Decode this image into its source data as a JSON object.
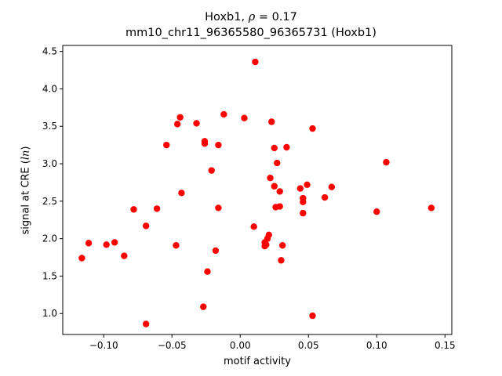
{
  "chart_data": {
    "type": "scatter",
    "title": {
      "gene": "Hoxb1, ",
      "rho_symbol": "ρ",
      "rho_value": " = 0.17",
      "subtitle": "mm10_chr11_96365580_96365731 (Hoxb1)"
    },
    "xlabel": "motif activity",
    "ylabel_prefix": "signal at CRE (",
    "ylabel_italic": "ln",
    "ylabel_suffix": ")",
    "xlim": [
      -0.13,
      0.155
    ],
    "ylim": [
      0.72,
      4.58
    ],
    "xticks": [
      -0.1,
      -0.05,
      0.0,
      0.05,
      0.1,
      0.15
    ],
    "xtick_labels": [
      "−0.10",
      "−0.05",
      "0.00",
      "0.05",
      "0.10",
      "0.15"
    ],
    "yticks": [
      1.0,
      1.5,
      2.0,
      2.5,
      3.0,
      3.5,
      4.0,
      4.5
    ],
    "ytick_labels": [
      "1.0",
      "1.5",
      "2.0",
      "2.5",
      "3.0",
      "3.5",
      "4.0",
      "4.5"
    ],
    "marker_color": "#ff0000",
    "grid": false,
    "points": [
      {
        "x": -0.116,
        "y": 1.74
      },
      {
        "x": -0.111,
        "y": 1.94
      },
      {
        "x": -0.098,
        "y": 1.92
      },
      {
        "x": -0.092,
        "y": 1.95
      },
      {
        "x": -0.085,
        "y": 1.77
      },
      {
        "x": -0.078,
        "y": 2.39
      },
      {
        "x": -0.069,
        "y": 2.17
      },
      {
        "x": -0.069,
        "y": 0.86
      },
      {
        "x": -0.061,
        "y": 2.4
      },
      {
        "x": -0.054,
        "y": 3.25
      },
      {
        "x": -0.047,
        "y": 1.91
      },
      {
        "x": -0.046,
        "y": 3.53
      },
      {
        "x": -0.044,
        "y": 3.62
      },
      {
        "x": -0.043,
        "y": 2.61
      },
      {
        "x": -0.032,
        "y": 3.54
      },
      {
        "x": -0.027,
        "y": 1.09
      },
      {
        "x": -0.026,
        "y": 3.3
      },
      {
        "x": -0.026,
        "y": 3.27
      },
      {
        "x": -0.024,
        "y": 1.56
      },
      {
        "x": -0.021,
        "y": 2.91
      },
      {
        "x": -0.018,
        "y": 1.84
      },
      {
        "x": -0.016,
        "y": 3.25
      },
      {
        "x": -0.016,
        "y": 2.41
      },
      {
        "x": -0.012,
        "y": 3.66
      },
      {
        "x": 0.003,
        "y": 3.61
      },
      {
        "x": 0.01,
        "y": 2.16
      },
      {
        "x": 0.011,
        "y": 4.36
      },
      {
        "x": 0.018,
        "y": 1.95
      },
      {
        "x": 0.018,
        "y": 1.9
      },
      {
        "x": 0.019,
        "y": 1.92
      },
      {
        "x": 0.02,
        "y": 2.0
      },
      {
        "x": 0.021,
        "y": 2.05
      },
      {
        "x": 0.022,
        "y": 2.81
      },
      {
        "x": 0.023,
        "y": 3.56
      },
      {
        "x": 0.025,
        "y": 3.21
      },
      {
        "x": 0.025,
        "y": 2.7
      },
      {
        "x": 0.026,
        "y": 2.42
      },
      {
        "x": 0.027,
        "y": 3.01
      },
      {
        "x": 0.029,
        "y": 2.43
      },
      {
        "x": 0.029,
        "y": 2.63
      },
      {
        "x": 0.03,
        "y": 1.71
      },
      {
        "x": 0.031,
        "y": 1.91
      },
      {
        "x": 0.034,
        "y": 3.22
      },
      {
        "x": 0.044,
        "y": 2.67
      },
      {
        "x": 0.046,
        "y": 2.54
      },
      {
        "x": 0.046,
        "y": 2.49
      },
      {
        "x": 0.046,
        "y": 2.34
      },
      {
        "x": 0.049,
        "y": 2.72
      },
      {
        "x": 0.053,
        "y": 3.47
      },
      {
        "x": 0.053,
        "y": 0.97
      },
      {
        "x": 0.062,
        "y": 2.55
      },
      {
        "x": 0.067,
        "y": 2.69
      },
      {
        "x": 0.1,
        "y": 2.36
      },
      {
        "x": 0.107,
        "y": 3.02
      },
      {
        "x": 0.14,
        "y": 2.41
      }
    ]
  }
}
